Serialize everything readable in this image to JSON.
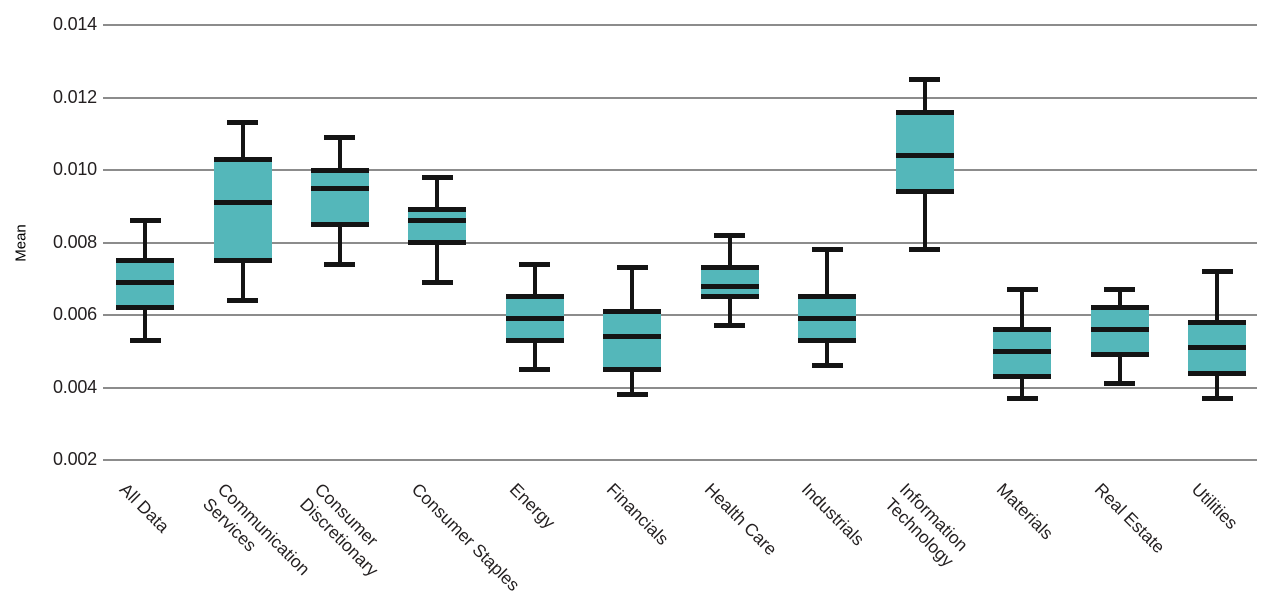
{
  "colors": {
    "box_fill": "#54b7ba",
    "box_line": "#141414",
    "grid": "#8c8c8c",
    "text": "#231f20",
    "background": "#ffffff"
  },
  "chart_data": {
    "type": "boxplot",
    "title": "",
    "xlabel": "",
    "ylabel": "Mean",
    "ylim": [
      0.002,
      0.014
    ],
    "yticks": [
      0.014,
      0.012,
      0.01,
      0.008,
      0.006,
      0.004,
      0.002
    ],
    "grid": "horizontal",
    "legend": "none",
    "categories": [
      "All Data",
      "Communication Services",
      "Consumer Discretionary",
      "Consumer Staples",
      "Energy",
      "Financials",
      "Health Care",
      "Industrials",
      "Information Technology",
      "Materials",
      "Real Estate",
      "Utilities"
    ],
    "category_label_lines": [
      [
        "All Data"
      ],
      [
        "Communication",
        "Services"
      ],
      [
        "Consumer",
        "Discretionary"
      ],
      [
        "Consumer Staples"
      ],
      [
        "Energy"
      ],
      [
        "Financials"
      ],
      [
        "Health Care"
      ],
      [
        "Industrials"
      ],
      [
        "Information",
        "Technology"
      ],
      [
        "Materials"
      ],
      [
        "Real Estate"
      ],
      [
        "Utilities"
      ]
    ],
    "series": [
      {
        "name": "All Data",
        "whisker_low": 0.0053,
        "q1": 0.0062,
        "median": 0.0069,
        "q3": 0.0075,
        "whisker_high": 0.0086
      },
      {
        "name": "Communication Services",
        "whisker_low": 0.0064,
        "q1": 0.0075,
        "median": 0.0091,
        "q3": 0.0103,
        "whisker_high": 0.0113
      },
      {
        "name": "Consumer Discretionary",
        "whisker_low": 0.0074,
        "q1": 0.0085,
        "median": 0.0095,
        "q3": 0.01,
        "whisker_high": 0.0109
      },
      {
        "name": "Consumer Staples",
        "whisker_low": 0.0069,
        "q1": 0.008,
        "median": 0.0086,
        "q3": 0.0089,
        "whisker_high": 0.0098
      },
      {
        "name": "Energy",
        "whisker_low": 0.0045,
        "q1": 0.0053,
        "median": 0.0059,
        "q3": 0.0065,
        "whisker_high": 0.0074
      },
      {
        "name": "Financials",
        "whisker_low": 0.0038,
        "q1": 0.0045,
        "median": 0.0054,
        "q3": 0.0061,
        "whisker_high": 0.0073
      },
      {
        "name": "Health Care",
        "whisker_low": 0.0057,
        "q1": 0.0065,
        "median": 0.0068,
        "q3": 0.0073,
        "whisker_high": 0.0082
      },
      {
        "name": "Industrials",
        "whisker_low": 0.0046,
        "q1": 0.0053,
        "median": 0.0059,
        "q3": 0.0065,
        "whisker_high": 0.0078
      },
      {
        "name": "Information Technology",
        "whisker_low": 0.0078,
        "q1": 0.0094,
        "median": 0.0104,
        "q3": 0.0116,
        "whisker_high": 0.0125
      },
      {
        "name": "Materials",
        "whisker_low": 0.0037,
        "q1": 0.0043,
        "median": 0.005,
        "q3": 0.0056,
        "whisker_high": 0.0067
      },
      {
        "name": "Real Estate",
        "whisker_low": 0.0041,
        "q1": 0.0049,
        "median": 0.0056,
        "q3": 0.0062,
        "whisker_high": 0.0067
      },
      {
        "name": "Utilities",
        "whisker_low": 0.0037,
        "q1": 0.0044,
        "median": 0.0051,
        "q3": 0.0058,
        "whisker_high": 0.0072
      }
    ]
  }
}
